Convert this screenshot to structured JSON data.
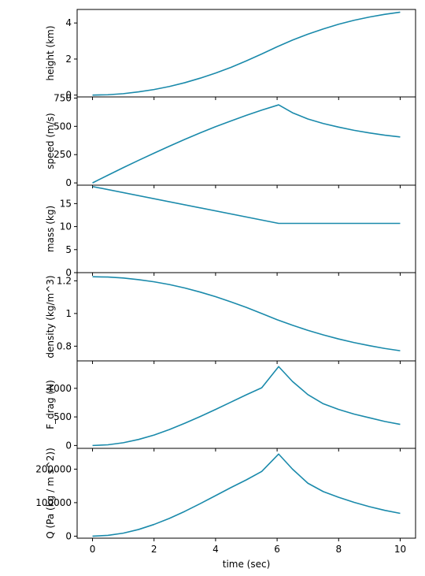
{
  "line_color": "#1a8aab",
  "chart_data": {
    "type": "line",
    "shared_x": true,
    "xlabel": "time (sec)",
    "xlim": [
      -0.5,
      10.5
    ],
    "xticks": [
      0,
      2,
      4,
      6,
      8,
      10
    ],
    "grid": false,
    "panels": [
      {
        "ylabel": "height (km)",
        "ylim": [
          -0.1,
          4.75
        ],
        "yticks": [
          0,
          2,
          4
        ],
        "x": [
          0,
          0.5,
          1,
          1.5,
          2,
          2.5,
          3,
          3.5,
          4,
          4.5,
          5,
          5.5,
          6,
          6.5,
          7,
          7.5,
          8,
          8.5,
          9,
          9.5,
          10
        ],
        "y": [
          0,
          0.02,
          0.08,
          0.18,
          0.31,
          0.48,
          0.69,
          0.94,
          1.22,
          1.54,
          1.9,
          2.28,
          2.68,
          3.05,
          3.38,
          3.67,
          3.93,
          4.15,
          4.33,
          4.48,
          4.6
        ]
      },
      {
        "ylabel": "speed (m/s)",
        "ylim": [
          -20,
          760
        ],
        "yticks": [
          0,
          250,
          500,
          750
        ],
        "x": [
          0,
          0.5,
          1,
          1.5,
          2,
          2.5,
          3,
          3.5,
          4,
          4.5,
          5,
          5.5,
          6.05,
          6.5,
          7,
          7.5,
          8,
          8.5,
          9,
          9.5,
          10
        ],
        "y": [
          0,
          68,
          135,
          200,
          263,
          325,
          385,
          442,
          497,
          548,
          597,
          643,
          690,
          620,
          565,
          525,
          493,
          465,
          442,
          422,
          406
        ]
      },
      {
        "ylabel": "mass (kg)",
        "ylim": [
          0,
          19
        ],
        "yticks": [
          0,
          5,
          10,
          15
        ],
        "x": [
          0,
          6.05,
          10
        ],
        "y": [
          18.7,
          10.7,
          10.7
        ]
      },
      {
        "ylabel": "density (kg/m^3)",
        "ylim": [
          0.71,
          1.25
        ],
        "yticks": [
          0.8,
          1.0,
          1.2
        ],
        "x": [
          0,
          0.5,
          1,
          1.5,
          2,
          2.5,
          3,
          3.5,
          4,
          4.5,
          5,
          5.5,
          6,
          6.5,
          7,
          7.5,
          8,
          8.5,
          9,
          9.5,
          10
        ],
        "y": [
          1.225,
          1.223,
          1.217,
          1.207,
          1.194,
          1.177,
          1.156,
          1.131,
          1.103,
          1.071,
          1.037,
          1.0,
          0.962,
          0.928,
          0.897,
          0.869,
          0.844,
          0.822,
          0.803,
          0.786,
          0.772
        ]
      },
      {
        "ylabel": "F_drag (N)",
        "ylim": [
          -50,
          1480
        ],
        "yticks": [
          0,
          500,
          1000
        ],
        "x": [
          0,
          0.5,
          1,
          1.5,
          2,
          2.5,
          3,
          3.5,
          4,
          4.5,
          5,
          5.5,
          6.05,
          6.5,
          7,
          7.5,
          8,
          8.5,
          9,
          9.5,
          10
        ],
        "y": [
          0,
          12,
          48,
          106,
          183,
          279,
          389,
          507,
          631,
          759,
          887,
          1010,
          1380,
          1120,
          890,
          730,
          630,
          550,
          485,
          420,
          370
        ]
      },
      {
        "ylabel": "Q (Pa (kg / m s^2))",
        "ylim": [
          -6000,
          262000
        ],
        "yticks": [
          0,
          100000,
          200000
        ],
        "x": [
          0,
          0.5,
          1,
          1.5,
          2,
          2.5,
          3,
          3.5,
          4,
          4.5,
          5,
          5.5,
          6.05,
          6.5,
          7,
          7.5,
          8,
          8.5,
          9,
          9.5,
          10
        ],
        "y": [
          0,
          2300,
          9000,
          20000,
          35000,
          53000,
          74000,
          97000,
          121000,
          145000,
          168000,
          193000,
          245000,
          200000,
          158000,
          133000,
          116000,
          101000,
          88000,
          77000,
          68000
        ]
      }
    ]
  }
}
